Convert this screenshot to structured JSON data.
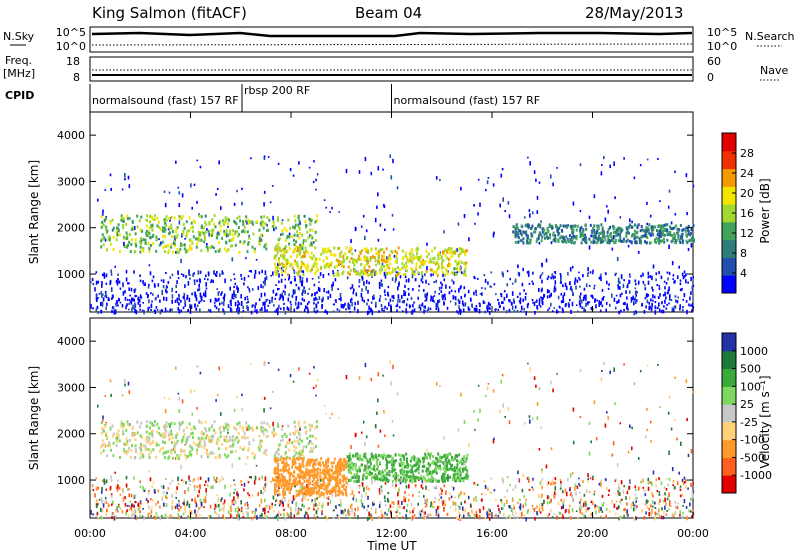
{
  "header": {
    "site": "King Salmon (fitACF)",
    "beam": "Beam 04",
    "date": "28/May/2013"
  },
  "top_panels": {
    "nsky_label": "N.Sky",
    "nsky_ticks": [
      "10^5",
      "10^0"
    ],
    "nsearch_label": "N.Search",
    "nsearch_ticks": [
      "10^5",
      "10^0"
    ],
    "freq_label_1": "Freq.",
    "freq_label_2": "[MHz]",
    "freq_ticks": [
      "18",
      "8"
    ],
    "nave_label": "Nave",
    "nave_ticks": [
      "60",
      "0"
    ],
    "cpid_label": "CPID",
    "cpid_segments": [
      {
        "label": "normalsound (fast) 157 RF",
        "start_hr": 0.0,
        "end_hr": 6.05
      },
      {
        "label": "rbsp 200 RF",
        "start_hr": 6.05,
        "end_hr": 12.0
      },
      {
        "label": "normalsound (fast) 157 RF",
        "start_hr": 12.0,
        "end_hr": 24.0
      }
    ]
  },
  "time_axis": {
    "label": "Time UT",
    "ticks": [
      "00:00",
      "04:00",
      "08:00",
      "12:00",
      "16:00",
      "20:00",
      "00:00"
    ]
  },
  "colors": {
    "power_scale": [
      "#0000ff",
      "#224eb0",
      "#2f7d7a",
      "#3fa35a",
      "#9fd830",
      "#f2e600",
      "#f59a00",
      "#f03000",
      "#e00000"
    ],
    "velocity_scale": [
      "#2233aa",
      "#1e7a3a",
      "#3aaa3a",
      "#7ed860",
      "#c8c8c8",
      "#ffd27a",
      "#ff9a2a",
      "#ff6020",
      "#e00000"
    ]
  },
  "chart_data": [
    {
      "type": "heatmap",
      "title": "Power",
      "ylabel": "Slant Range [km]",
      "xlabel": "",
      "x_range_hours": [
        0,
        24
      ],
      "ylim": [
        180,
        4500
      ],
      "y_ticks": [
        "1000",
        "2000",
        "3000",
        "4000"
      ],
      "colorbar": {
        "label": "Power [dB]",
        "ticks": [
          "28",
          "24",
          "20",
          "16",
          "12",
          "8",
          "4"
        ],
        "range": [
          0,
          30
        ]
      },
      "features": [
        {
          "name": "band-a",
          "hours": [
            0.4,
            9.0
          ],
          "range_km": [
            1500,
            2300
          ],
          "value_db": 14
        },
        {
          "name": "band-b",
          "hours": [
            7.3,
            15.0
          ],
          "range_km": [
            1000,
            1600
          ],
          "value_db": 18
        },
        {
          "name": "band-c",
          "hours": [
            16.8,
            24.0
          ],
          "range_km": [
            1700,
            2100
          ],
          "value_db": 8
        }
      ]
    },
    {
      "type": "heatmap",
      "title": "Velocity",
      "ylabel": "Slant Range [km]",
      "xlabel": "Time UT",
      "x_range_hours": [
        0,
        24
      ],
      "ylim": [
        180,
        4500
      ],
      "y_ticks": [
        "1000",
        "2000",
        "3000",
        "4000"
      ],
      "colorbar": {
        "label": "Velocity [m s⁻¹]",
        "ticks": [
          "1000",
          "500",
          "100",
          "25",
          "-25",
          "-100",
          "-500",
          "-1000"
        ],
        "range": [
          -1000,
          1000
        ]
      },
      "features": [
        {
          "name": "band-a",
          "hours": [
            0.4,
            9.0
          ],
          "range_km": [
            1500,
            2300
          ],
          "value_ms": 0
        },
        {
          "name": "band-b",
          "hours": [
            7.3,
            10.2
          ],
          "range_km": [
            700,
            1500
          ],
          "value_ms": -400
        },
        {
          "name": "band-c",
          "hours": [
            10.2,
            15.0
          ],
          "range_km": [
            1000,
            1600
          ],
          "value_ms": 120
        }
      ]
    }
  ]
}
